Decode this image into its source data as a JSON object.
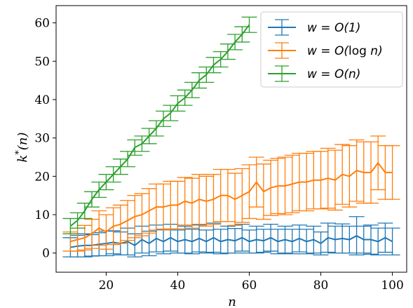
{
  "chart_data": {
    "type": "line",
    "xlabel": "n",
    "ylabel": "k*(n)",
    "xlim": [
      6,
      104
    ],
    "ylim": [
      -5,
      64.5
    ],
    "xticks": [
      20,
      40,
      60,
      80,
      100
    ],
    "yticks": [
      0,
      10,
      20,
      30,
      40,
      50,
      60
    ],
    "legend_position": "top-right",
    "series": [
      {
        "name": "w = O(1)",
        "legend": {
          "pre": "w = O(1)",
          "fn": "",
          "post": ""
        },
        "color": "#1f77b4",
        "x": [
          10,
          12,
          14,
          16,
          18,
          20,
          22,
          24,
          26,
          28,
          30,
          32,
          34,
          36,
          38,
          40,
          42,
          44,
          46,
          48,
          50,
          52,
          54,
          56,
          58,
          60,
          62,
          64,
          66,
          68,
          70,
          72,
          74,
          76,
          78,
          80,
          82,
          84,
          86,
          88,
          90,
          92,
          94,
          96,
          98,
          100
        ],
        "y": [
          1.5,
          1.8,
          2.0,
          2.0,
          2.3,
          2.5,
          2.8,
          2.5,
          3.0,
          2.0,
          3.5,
          2.5,
          3.8,
          3.0,
          4.0,
          3.0,
          3.5,
          3.0,
          3.8,
          3.0,
          4.0,
          3.0,
          3.5,
          3.2,
          4.0,
          3.0,
          3.5,
          3.2,
          4.0,
          3.0,
          3.5,
          3.0,
          3.8,
          3.0,
          3.5,
          2.5,
          4.0,
          3.5,
          3.8,
          3.5,
          4.5,
          3.5,
          3.5,
          3.0,
          4.0,
          3.0
        ],
        "err": [
          2.5,
          2.8,
          3.0,
          2.8,
          3.0,
          3.2,
          3.0,
          3.0,
          3.5,
          3.0,
          3.5,
          3.2,
          3.5,
          3.2,
          3.5,
          3.0,
          3.5,
          3.2,
          3.5,
          3.0,
          3.8,
          3.2,
          3.5,
          3.2,
          3.5,
          3.0,
          3.5,
          3.0,
          3.5,
          3.2,
          3.5,
          3.2,
          3.5,
          3.2,
          3.5,
          3.0,
          3.8,
          3.5,
          3.8,
          3.5,
          5.0,
          3.5,
          3.8,
          3.5,
          3.8,
          3.5
        ]
      },
      {
        "name": "w = O(log n)",
        "legend": {
          "pre": "w = O(",
          "fn": "log",
          "post": " n)"
        },
        "color": "#ff7f0e",
        "x": [
          10,
          12,
          14,
          16,
          18,
          20,
          22,
          24,
          26,
          28,
          30,
          32,
          34,
          36,
          38,
          40,
          42,
          44,
          46,
          48,
          50,
          52,
          54,
          56,
          58,
          60,
          62,
          64,
          66,
          68,
          70,
          72,
          74,
          76,
          78,
          80,
          82,
          84,
          86,
          88,
          90,
          92,
          94,
          96,
          98,
          100
        ],
        "y": [
          3.0,
          3.5,
          4.0,
          5.0,
          6.5,
          5.5,
          7.0,
          7.5,
          8.5,
          9.5,
          10.0,
          11.0,
          12.0,
          12.0,
          12.5,
          12.5,
          13.5,
          13.0,
          14.0,
          13.5,
          14.0,
          15.0,
          15.0,
          14.0,
          15.0,
          16.0,
          18.5,
          16.0,
          17.0,
          17.5,
          17.5,
          18.0,
          18.5,
          18.5,
          19.0,
          19.0,
          19.5,
          19.0,
          20.5,
          20.0,
          21.5,
          21.0,
          21.0,
          23.5,
          21.0,
          21.0
        ],
        "err": [
          2.5,
          3.0,
          3.2,
          3.8,
          4.5,
          4.5,
          4.8,
          5.0,
          5.2,
          5.5,
          5.5,
          5.8,
          6.0,
          6.0,
          6.2,
          6.2,
          6.2,
          6.5,
          6.5,
          6.5,
          6.5,
          6.8,
          6.8,
          6.8,
          7.0,
          7.0,
          6.5,
          7.2,
          7.2,
          7.2,
          7.5,
          7.5,
          7.5,
          7.5,
          7.5,
          7.5,
          7.8,
          7.8,
          7.8,
          8.0,
          8.0,
          8.0,
          8.0,
          7.0,
          7.0,
          7.0
        ]
      },
      {
        "name": "w = O(n)",
        "legend": {
          "pre": "w = O(n)",
          "fn": "",
          "post": ""
        },
        "color": "#2ca02c",
        "x": [
          10,
          12,
          14,
          16,
          18,
          20,
          22,
          24,
          26,
          28,
          30,
          32,
          34,
          36,
          38,
          40,
          42,
          44,
          46,
          48,
          50,
          52,
          54,
          56,
          58,
          60
        ],
        "y": [
          7.0,
          8.5,
          11.0,
          14.0,
          16.5,
          18.5,
          20.5,
          22.5,
          24.5,
          27.5,
          28.5,
          30.5,
          32.5,
          35.0,
          36.5,
          39.0,
          40.5,
          42.5,
          45.0,
          46.5,
          49.0,
          50.5,
          52.5,
          55.0,
          57.0,
          59.5
        ],
        "err": [
          2.0,
          2.0,
          2.0,
          2.0,
          2.0,
          2.0,
          2.0,
          2.0,
          2.0,
          2.0,
          2.0,
          2.0,
          2.0,
          2.0,
          2.0,
          2.0,
          2.0,
          2.0,
          2.0,
          2.0,
          2.0,
          2.0,
          2.0,
          2.0,
          2.0,
          2.0
        ]
      }
    ]
  }
}
